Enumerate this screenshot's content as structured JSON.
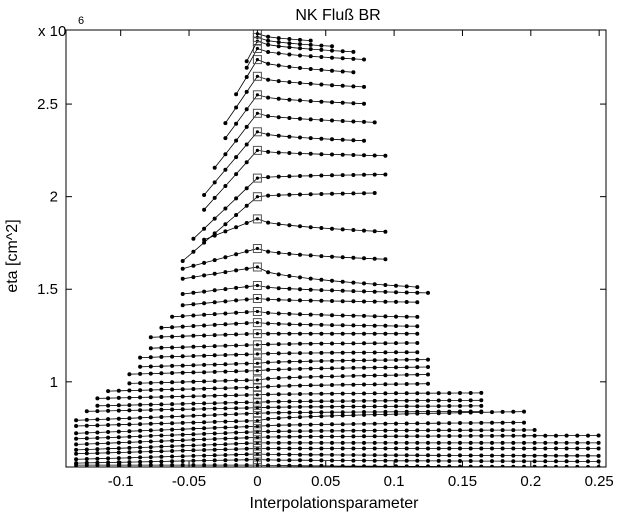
{
  "chart_data": {
    "type": "line",
    "title": "NK Fluß BR",
    "xlabel": "Interpolationsparameter",
    "ylabel": "eta [cm^2]",
    "y_scale_label_base": "x 10",
    "y_scale_label_exp": "6",
    "xlim": [
      -0.14,
      0.255
    ],
    "ylim": [
      0.54,
      2.9
    ],
    "x_ticks": [
      -0.1,
      -0.05,
      0,
      0.05,
      0.1,
      0.15,
      0.2,
      0.25
    ],
    "x_tick_labels": [
      "-0.1",
      "-0.05",
      "0",
      "0.05",
      "0.1",
      "0.15",
      "0.2",
      "0.25"
    ],
    "y_ticks": [
      1,
      1.5,
      2,
      2.5
    ],
    "y_tick_labels": [
      "1",
      "1.5",
      "2",
      "2.5"
    ],
    "grid": false,
    "colors": {
      "line": "#000000",
      "marker": "#000000",
      "square": "#555555"
    },
    "series": [
      {
        "y0": 0.55,
        "xl": -0.14,
        "yl": 0.55,
        "xr": 0.255,
        "yr": 0.54
      },
      {
        "y0": 0.58,
        "xl": -0.14,
        "yl": 0.56,
        "xr": 0.255,
        "yr": 0.57
      },
      {
        "y0": 0.61,
        "xl": -0.14,
        "yl": 0.58,
        "xr": 0.255,
        "yr": 0.6
      },
      {
        "y0": 0.64,
        "xl": -0.14,
        "yl": 0.61,
        "xr": 0.255,
        "yr": 0.64
      },
      {
        "y0": 0.67,
        "xl": -0.14,
        "yl": 0.63,
        "xr": 0.255,
        "yr": 0.67
      },
      {
        "y0": 0.7,
        "xl": -0.14,
        "yl": 0.66,
        "xr": 0.255,
        "yr": 0.71
      },
      {
        "y0": 0.73,
        "xl": -0.14,
        "yl": 0.69,
        "xr": 0.21,
        "yr": 0.74
      },
      {
        "y0": 0.76,
        "xl": -0.14,
        "yl": 0.72,
        "xr": 0.195,
        "yr": 0.78
      },
      {
        "y0": 0.79,
        "xl": -0.14,
        "yl": 0.76,
        "xr": 0.2,
        "yr": 0.84
      },
      {
        "y0": 0.83,
        "xl": -0.14,
        "yl": 0.79,
        "xr": 0.165,
        "yr": 0.84
      },
      {
        "y0": 0.86,
        "xl": -0.13,
        "yl": 0.84,
        "xr": 0.165,
        "yr": 0.87
      },
      {
        "y0": 0.89,
        "xl": -0.12,
        "yl": 0.87,
        "xr": 0.165,
        "yr": 0.9
      },
      {
        "y0": 0.93,
        "xl": -0.12,
        "yl": 0.91,
        "xr": 0.165,
        "yr": 0.94
      },
      {
        "y0": 0.97,
        "xl": -0.11,
        "yl": 0.95,
        "xr": 0.13,
        "yr": 0.99
      },
      {
        "y0": 1.01,
        "xl": -0.1,
        "yl": 0.99,
        "xr": 0.13,
        "yr": 1.04
      },
      {
        "y0": 1.06,
        "xl": -0.1,
        "yl": 1.04,
        "xr": 0.125,
        "yr": 1.08
      },
      {
        "y0": 1.1,
        "xl": -0.09,
        "yl": 1.08,
        "xr": 0.125,
        "yr": 1.12
      },
      {
        "y0": 1.15,
        "xl": -0.09,
        "yl": 1.13,
        "xr": 0.12,
        "yr": 1.16
      },
      {
        "y0": 1.2,
        "xl": -0.085,
        "yl": 1.18,
        "xr": 0.12,
        "yr": 1.21
      },
      {
        "y0": 1.26,
        "xl": -0.08,
        "yl": 1.24,
        "xr": 0.12,
        "yr": 1.26
      },
      {
        "y0": 1.32,
        "xl": -0.075,
        "yl": 1.29,
        "xr": 0.12,
        "yr": 1.3
      },
      {
        "y0": 1.38,
        "xl": -0.065,
        "yl": 1.35,
        "xr": 0.12,
        "yr": 1.35
      },
      {
        "y0": 1.45,
        "xl": -0.06,
        "yl": 1.41,
        "xr": 0.12,
        "yr": 1.43
      },
      {
        "y0": 1.52,
        "xl": -0.06,
        "yl": 1.47,
        "xr": 0.125,
        "yr": 1.48
      },
      {
        "y0": 1.62,
        "xl": -0.06,
        "yl": 1.55,
        "xr": 0.12,
        "yr": 1.51
      },
      {
        "y0": 1.72,
        "xl": -0.06,
        "yl": 1.6,
        "xr": 0.1,
        "yr": 1.66
      },
      {
        "y0": 1.88,
        "xl": -0.045,
        "yl": 1.75,
        "xr": 0.095,
        "yr": 1.81
      },
      {
        "y0": 2.0,
        "xl": -0.055,
        "yl": 1.65,
        "xr": 0.09,
        "yr": 2.02
      },
      {
        "y0": 2.1,
        "xl": -0.05,
        "yl": 1.75,
        "xr": 0.095,
        "yr": 2.12
      },
      {
        "y0": 2.25,
        "xl": -0.045,
        "yl": 1.88,
        "xr": 0.1,
        "yr": 2.22
      },
      {
        "y0": 2.35,
        "xl": -0.04,
        "yl": 2.0,
        "xr": 0.085,
        "yr": 2.3
      },
      {
        "y0": 2.45,
        "xl": -0.035,
        "yl": 2.12,
        "xr": 0.09,
        "yr": 2.4
      },
      {
        "y0": 2.55,
        "xl": -0.03,
        "yl": 2.25,
        "xr": 0.085,
        "yr": 2.5
      },
      {
        "y0": 2.65,
        "xl": -0.025,
        "yl": 2.38,
        "xr": 0.085,
        "yr": 2.59
      },
      {
        "y0": 2.74,
        "xl": -0.02,
        "yl": 2.5,
        "xr": 0.075,
        "yr": 2.67
      },
      {
        "y0": 2.8,
        "xl": -0.015,
        "yl": 2.6,
        "xr": 0.08,
        "yr": 2.74
      },
      {
        "y0": 2.84,
        "xl": -0.01,
        "yl": 2.7,
        "xr": 0.075,
        "yr": 2.78
      },
      {
        "y0": 2.86,
        "xl": -0.005,
        "yl": 2.78,
        "xr": 0.06,
        "yr": 2.81
      },
      {
        "y0": 2.88,
        "xl": -0.003,
        "yl": 2.84,
        "xr": 0.045,
        "yr": 2.84
      }
    ]
  }
}
